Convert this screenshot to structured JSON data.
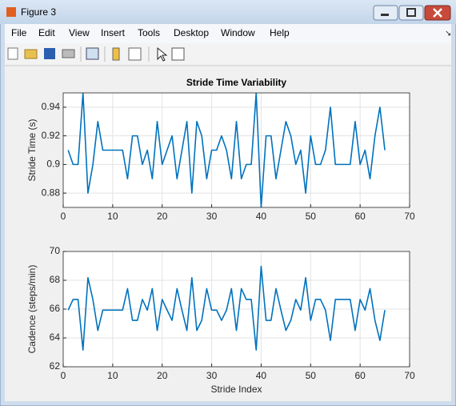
{
  "window": {
    "title": "Figure 3",
    "menu": [
      "File",
      "Edit",
      "View",
      "Insert",
      "Tools",
      "Desktop",
      "Window",
      "Help"
    ]
  },
  "chart_data": [
    {
      "type": "line",
      "title": "Stride Time Variability",
      "ylabel": "Stride Time (s)",
      "x": [
        1,
        2,
        3,
        4,
        5,
        6,
        7,
        8,
        9,
        10,
        11,
        12,
        13,
        14,
        15,
        16,
        17,
        18,
        19,
        20,
        21,
        22,
        23,
        24,
        25,
        26,
        27,
        28,
        29,
        30,
        31,
        32,
        33,
        34,
        35,
        36,
        37,
        38,
        39,
        40,
        41,
        42,
        43,
        44,
        45,
        46,
        47,
        48,
        49,
        50,
        51,
        52,
        53,
        54,
        55,
        56,
        57,
        58,
        59,
        60,
        61,
        62,
        63,
        64,
        65
      ],
      "series": [
        {
          "color": "#0072bd",
          "values": [
            0.91,
            0.9,
            0.9,
            0.95,
            0.88,
            0.9,
            0.93,
            0.91,
            0.91,
            0.91,
            0.91,
            0.91,
            0.89,
            0.92,
            0.92,
            0.9,
            0.91,
            0.89,
            0.93,
            0.9,
            0.91,
            0.92,
            0.89,
            0.91,
            0.93,
            0.88,
            0.93,
            0.92,
            0.89,
            0.91,
            0.91,
            0.92,
            0.91,
            0.89,
            0.93,
            0.89,
            0.9,
            0.9,
            0.95,
            0.87,
            0.92,
            0.92,
            0.89,
            0.91,
            0.93,
            0.92,
            0.9,
            0.91,
            0.88,
            0.92,
            0.9,
            0.9,
            0.91,
            0.94,
            0.9,
            0.9,
            0.9,
            0.9,
            0.93,
            0.9,
            0.91,
            0.89,
            0.92,
            0.94,
            0.91
          ]
        }
      ],
      "xlim": [
        0,
        70
      ],
      "xticks": [
        0,
        10,
        20,
        30,
        40,
        50,
        60,
        70
      ],
      "ylim": [
        0.87,
        0.95
      ],
      "yticks": [
        0.88,
        0.9,
        0.92,
        0.94
      ],
      "grid": true
    },
    {
      "type": "line",
      "ylabel": "Cadence (steps/min)",
      "xlabel": "Stride Index",
      "x": [
        1,
        2,
        3,
        4,
        5,
        6,
        7,
        8,
        9,
        10,
        11,
        12,
        13,
        14,
        15,
        16,
        17,
        18,
        19,
        20,
        21,
        22,
        23,
        24,
        25,
        26,
        27,
        28,
        29,
        30,
        31,
        32,
        33,
        34,
        35,
        36,
        37,
        38,
        39,
        40,
        41,
        42,
        43,
        44,
        45,
        46,
        47,
        48,
        49,
        50,
        51,
        52,
        53,
        54,
        55,
        56,
        57,
        58,
        59,
        60,
        61,
        62,
        63,
        64,
        65
      ],
      "series": [
        {
          "color": "#0072bd",
          "values": [
            65.93,
            66.67,
            66.67,
            63.16,
            68.18,
            66.67,
            64.52,
            65.93,
            65.93,
            65.93,
            65.93,
            65.93,
            67.42,
            65.22,
            65.22,
            66.67,
            65.93,
            67.42,
            64.52,
            66.67,
            65.93,
            65.22,
            67.42,
            65.93,
            64.52,
            68.18,
            64.52,
            65.22,
            67.42,
            65.93,
            65.93,
            65.22,
            65.93,
            67.42,
            64.52,
            67.42,
            66.67,
            66.67,
            63.16,
            68.97,
            65.22,
            65.22,
            67.42,
            65.93,
            64.52,
            65.22,
            66.67,
            65.93,
            68.18,
            65.22,
            66.67,
            66.67,
            65.93,
            63.83,
            66.67,
            66.67,
            66.67,
            66.67,
            64.52,
            66.67,
            65.93,
            67.42,
            65.22,
            63.83,
            65.93
          ]
        }
      ],
      "xlim": [
        0,
        70
      ],
      "xticks": [
        0,
        10,
        20,
        30,
        40,
        50,
        60,
        70
      ],
      "ylim": [
        62,
        70
      ],
      "yticks": [
        62,
        64,
        66,
        68,
        70
      ],
      "grid": true
    }
  ]
}
